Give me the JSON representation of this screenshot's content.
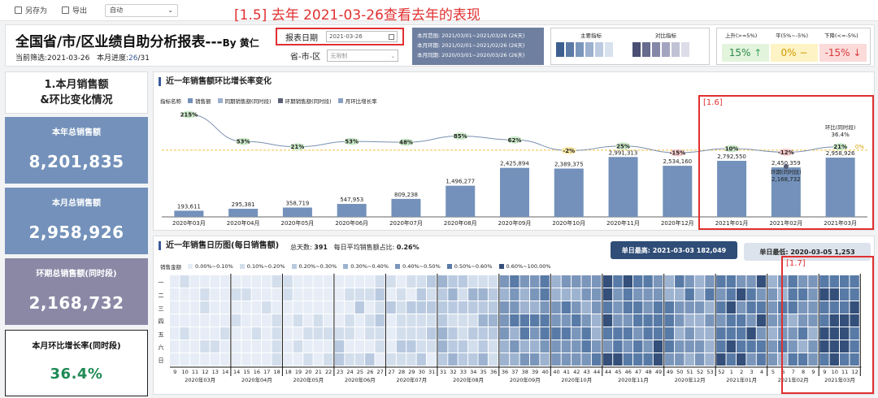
{
  "toolbar": {
    "save_as": "另存为",
    "export": "导出",
    "mode": "自动"
  },
  "annotation_title": "[1.5] 去年 2021-03-26查看去年的表现",
  "header": {
    "title": "全国省/市/区业绩自助分析报表---",
    "by": "By 黄仁",
    "filter_label": "当前筛选:",
    "filter_date": "2021-03-26",
    "progress_label": "本月进度:",
    "progress_value": "26",
    "progress_total": "/31",
    "report_date_label": "报表日期",
    "report_date_value": "2021-03-26",
    "region_label": "省-市-区",
    "region_placeholder": "无限制",
    "period_lines": [
      "本月范围:  2021/03/01~2021/03/26 (26天)",
      "本月环期:  2021/02/01~2021/02/26 (26天)",
      "本月同期:  2020/03/01~2020/03/26 (26天)"
    ],
    "palette_main_label": "主要指标",
    "palette_compare_label": "对比指标",
    "palette_main_colors": [
      "#3d5f8f",
      "#5b7aa6",
      "#7b96bb",
      "#9cb0cf",
      "#bccbe0",
      "#d8e1ee"
    ],
    "palette_compare_colors": [
      "#4a4f73",
      "#676b8e",
      "#8487a8",
      "#a3a5c0",
      "#c1c2d6",
      "#dddde9"
    ],
    "trend_up_label": "上升(>=5%)",
    "trend_flat_label": "平(5%~-5%)",
    "trend_down_label": "下降(<=-5%)",
    "trend_up_value": "15%",
    "trend_flat_value": "0%",
    "trend_down_value": "-15%",
    "trend_up_arrow": "↑",
    "trend_flat_sign": "−",
    "trend_down_arrow": "↓",
    "trend_up_bg": "#e3f4dc",
    "trend_flat_bg": "#fdf3c4",
    "trend_down_bg": "#fbdada"
  },
  "kpi": {
    "section_title_line1": "1.本月销售额",
    "section_title_line2": "&环比变化情况",
    "cards": [
      {
        "label": "本年总销售额",
        "value": "8,201,835",
        "color": "#7391ba"
      },
      {
        "label": "本月总销售额",
        "value": "2,958,926",
        "color": "#7391ba"
      },
      {
        "label": "环期总销售额(同时段)",
        "value": "2,168,732",
        "color": "#8b88a6"
      }
    ],
    "growth_label": "本月环比增长率(同时段)",
    "growth_value": "36.4%"
  },
  "chart_data": [
    {
      "type": "bar",
      "title": "近一年销售额环比增长率变化",
      "legend_title": "指标名称",
      "legend": [
        "销售额",
        "同期销售额(同时段)",
        "环期销售额(同时段)",
        "月环比增长率"
      ],
      "categories": [
        "2020年03月",
        "2020年04月",
        "2020年05月",
        "2020年06月",
        "2020年07月",
        "2020年08月",
        "2020年09月",
        "2020年10月",
        "2020年11月",
        "2020年12月",
        "2021年01月",
        "2021年02月",
        "2021年03月"
      ],
      "values": [
        193611,
        295381,
        358719,
        547953,
        809238,
        1496277,
        2425894,
        2389375,
        2991313,
        2534160,
        2792550,
        2450359,
        2958926
      ],
      "value_labels": [
        "193,611",
        "295,381",
        "358,719",
        "547,953",
        "809,238",
        "1,496,277",
        "2,425,894",
        "2,389,375",
        "2,991,313",
        "2,534,160",
        "2,792,550",
        "2,450,359",
        "2,958,926"
      ],
      "growth_rate_pct": [
        215,
        53,
        21,
        53,
        48,
        85,
        62,
        -2,
        25,
        -15,
        10,
        -12,
        21
      ],
      "growth_labels": [
        "215%",
        "53%",
        "21%",
        "53%",
        "48%",
        "85%",
        "62%",
        "-2%",
        "25%",
        "-15%",
        "10%",
        "-12%",
        "21%"
      ],
      "reference_line_label": "0%",
      "ring_period_label": "环期(同时段)",
      "ring_period_value": "2,168,732",
      "ring_compare_label": "环比(同时段)",
      "ring_compare_value": "36.4%",
      "ylim": [
        0,
        3300000
      ]
    },
    {
      "type": "heatmap",
      "title": "近一年销售日历图(每日销售额)",
      "total_days_label": "总天数:",
      "total_days": "391",
      "avg_ratio_label": "每日平均销售额占比:",
      "avg_ratio": "0.26%",
      "max_label": "单日最高:",
      "max_date": "2021-03-03",
      "max_value": "182,049",
      "min_label": "单日最低:",
      "min_date": "2020-03-05",
      "min_value": "1,253",
      "legend_title": "销售金额",
      "bins": [
        "0.00%~0.10%",
        "0.10%~0.20%",
        "0.20%~0.30%",
        "0.30%~0.40%",
        "0.40%~0.50%",
        "0.50%~0.60%",
        "0.60%~100.00%"
      ],
      "bin_colors": [
        "#e6edf6",
        "#d3deec",
        "#b9cae0",
        "#9db3d0",
        "#7b96bb",
        "#587aa6",
        "#344f7a"
      ],
      "weekdays": [
        "一",
        "二",
        "三",
        "四",
        "五",
        "六",
        "日"
      ],
      "months": [
        "2020年03月",
        "2020年04月",
        "2020年05月",
        "2020年06月",
        "2020年07月",
        "2020年08月",
        "2020年09月",
        "2020年10月",
        "2020年11月",
        "2020年12月",
        "2021年01月",
        "2021年02月",
        "2021年03月"
      ],
      "month_weeks": [
        [
          "9",
          "10",
          "11",
          "12",
          "13",
          "14"
        ],
        [
          "14",
          "15",
          "16",
          "17",
          "18"
        ],
        [
          "18",
          "19",
          "20",
          "21",
          "22"
        ],
        [
          "23",
          "24",
          "25",
          "26",
          "27"
        ],
        [
          "27",
          "28",
          "29",
          "30",
          "31"
        ],
        [
          "31",
          "32",
          "33",
          "34",
          "35",
          "36"
        ],
        [
          "36",
          "37",
          "38",
          "39",
          "40"
        ],
        [
          "40",
          "41",
          "42",
          "43",
          "44"
        ],
        [
          "44",
          "45",
          "46",
          "47",
          "48",
          "49"
        ],
        [
          "49",
          "50",
          "51",
          "52",
          "53"
        ],
        [
          "52",
          "1",
          "2",
          "3",
          "4"
        ],
        [
          "5",
          "6",
          "7",
          "8",
          "9"
        ],
        [
          "9",
          "10",
          "11",
          "12"
        ]
      ],
      "month_level": [
        0,
        0,
        0,
        1,
        1,
        2,
        4,
        4,
        5,
        4,
        5,
        4,
        6
      ]
    }
  ],
  "annotations": {
    "a16": "[1.6]",
    "a17": "[1.7]"
  }
}
